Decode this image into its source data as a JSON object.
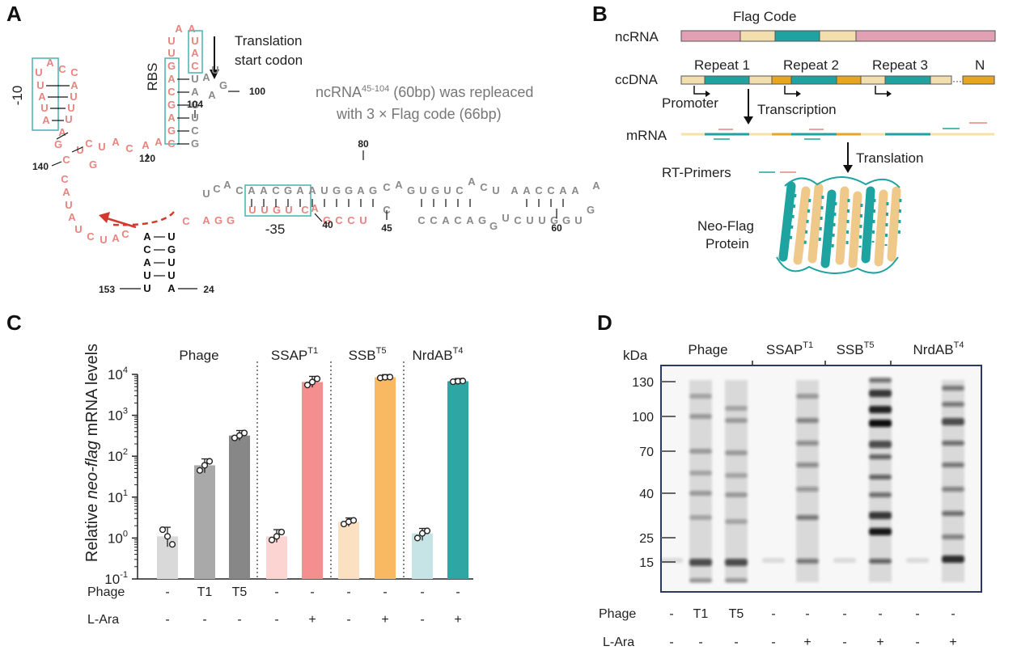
{
  "panels": {
    "A": "A",
    "B": "B",
    "C": "C",
    "D": "D"
  },
  "colors": {
    "pink": "#e8847f",
    "teal": "#1fa3a0",
    "box": "#45b3b0",
    "gray": "#8a8a8a",
    "dark": "#222222",
    "lightpink": "#e2a0b4",
    "cream": "#f3dfae",
    "orange": "#eaa520"
  },
  "panelA": {
    "label_minus10": "-10",
    "label_rbs": "RBS",
    "label_minus35": "-35",
    "start_codon_l1": "Translation",
    "start_codon_l2": "start codon",
    "note_l1_a": "ncRNA",
    "note_l1_sup": "45-104",
    "note_l1_b": " (60bp) was repleaced",
    "note_l2": "with 3 × Flag code (66bp)",
    "numbers": {
      "n100": "100",
      "n104": "104",
      "n120": "120",
      "n140": "140",
      "n80": "80",
      "n40": "40",
      "n45": "45",
      "n60": "60",
      "n153": "153",
      "n24": "24"
    },
    "top_left_col": [
      "U",
      "U",
      "A",
      "U",
      "A"
    ],
    "top_right_col": [
      "C",
      "A",
      "U",
      "U",
      "U"
    ],
    "loop_top": [
      "A",
      "C"
    ],
    "rbs_left": [
      "U",
      "U",
      "G",
      "A",
      "C",
      "G",
      "A"
    ],
    "loop_aa": [
      "A",
      "A"
    ],
    "rbs_right": [
      "U",
      "A",
      "C",
      "U",
      "A",
      "G",
      "U",
      "C",
      "G",
      "U"
    ],
    "hairpin_tail": [
      "A",
      "U",
      "G",
      "A"
    ],
    "top_strand": [
      "U",
      "C",
      "A",
      "C",
      "A",
      "A",
      "C",
      "G",
      "A",
      "A",
      "U",
      "G",
      "G",
      "A",
      "G",
      "C",
      "A",
      "G",
      "U",
      "G",
      "U",
      "C",
      "A",
      "C",
      "U",
      "A",
      "A",
      "C",
      "C",
      "A",
      "A"
    ],
    "bottom_strand": [
      "A",
      "G",
      "G",
      "U",
      "U",
      "G",
      "U",
      "C",
      "A",
      "G",
      "C",
      "C",
      "U",
      "C",
      "C",
      "C",
      "A",
      "C",
      "A",
      "G",
      "G",
      "U",
      "C",
      "U",
      "U",
      "G",
      "G",
      "U",
      "G",
      "A"
    ],
    "tail_seq": [
      "C",
      "A",
      "U",
      "C",
      "G",
      "C",
      "A",
      "A",
      "U",
      "G",
      "A",
      "C",
      "G",
      "C",
      "A",
      "U",
      "A",
      "U",
      "C",
      "U",
      "A",
      "C"
    ],
    "stem_left": [
      "A",
      "C",
      "A",
      "U",
      "U"
    ],
    "stem_right": [
      "U",
      "G",
      "U",
      "U",
      "A"
    ]
  },
  "panelB": {
    "ncRNA": "ncRNA",
    "flag_code": "Flag Code",
    "ccDNA": "ccDNA",
    "repeat1": "Repeat 1",
    "repeat2": "Repeat 2",
    "repeat3": "Repeat 3",
    "n_label": "N",
    "ellipsis": "···",
    "promoter": "Promoter",
    "transcription": "Transcription",
    "mRNA": "mRNA",
    "translation": "Translation",
    "rt_primers": "RT-Primers",
    "protein_l1": "Neo-Flag",
    "protein_l2": "Protein"
  },
  "panelC": {
    "ylabel_a": "Relative ",
    "ylabel_italic": "neo-flag",
    "ylabel_b": " mRNA levels",
    "groups": [
      {
        "name": "Phage",
        "sup": ""
      },
      {
        "name": "SSAP",
        "sup": "T1"
      },
      {
        "name": "SSB",
        "sup": "T5"
      },
      {
        "name": "NrdAB",
        "sup": "T4"
      }
    ],
    "row_phage": "Phage",
    "row_lara": "L-Ara",
    "phage_vals": [
      "-",
      "T1",
      "T5",
      "-",
      "-",
      "-",
      "-",
      "-",
      "-"
    ],
    "lara_vals": [
      "-",
      "-",
      "-",
      "-",
      "+",
      "-",
      "+",
      "-",
      "+"
    ]
  },
  "panelD": {
    "kda": "kDa",
    "markers": [
      "130",
      "100",
      "70",
      "40",
      "25",
      "15"
    ],
    "groups": [
      {
        "name": "Phage",
        "sup": ""
      },
      {
        "name": "SSAP",
        "sup": "T1"
      },
      {
        "name": "SSB",
        "sup": "T5"
      },
      {
        "name": "NrdAB",
        "sup": "T4"
      }
    ],
    "row_phage": "Phage",
    "row_lara": "L-Ara",
    "phage_vals": [
      "-",
      "T1",
      "T5",
      "-",
      "-",
      "-",
      "-",
      "-",
      "-"
    ],
    "lara_vals": [
      "-",
      "-",
      "-",
      "-",
      "+",
      "-",
      "+",
      "-",
      "+"
    ]
  },
  "chart_data": {
    "type": "bar",
    "categories": [
      "Phage -",
      "Phage T1",
      "Phage T5",
      "SSAP - ",
      "SSAP +",
      "SSB -",
      "SSB +",
      "NrdAB -",
      "NrdAB +"
    ],
    "values": [
      1.1,
      60,
      320,
      1.1,
      6500,
      2.5,
      8500,
      1.3,
      6800
    ],
    "points": [
      [
        1.6,
        1.1,
        0.7
      ],
      [
        45,
        60,
        75
      ],
      [
        280,
        320,
        370
      ],
      [
        0.9,
        1.1,
        1.4
      ],
      [
        5500,
        6500,
        7800
      ],
      [
        2.2,
        2.5,
        2.7
      ],
      [
        8200,
        8500,
        8600
      ],
      [
        1.0,
        1.3,
        1.5
      ],
      [
        6600,
        6800,
        6900
      ]
    ],
    "colors": [
      "#d9d9d9",
      "#a9a9a9",
      "#878787",
      "#fcd5d3",
      "#f58e8e",
      "#fbe1c1",
      "#f9b862",
      "#c6e3e6",
      "#2ea6a3"
    ],
    "yscale": "log",
    "ylim": [
      0.1,
      10000
    ],
    "yticks": [
      {
        "v": 0.1,
        "b": "10",
        "e": "-1"
      },
      {
        "v": 1,
        "b": "10",
        "e": "0"
      },
      {
        "v": 10,
        "b": "10",
        "e": "1"
      },
      {
        "v": 100,
        "b": "10",
        "e": "2"
      },
      {
        "v": 1000,
        "b": "10",
        "e": "3"
      },
      {
        "v": 10000,
        "b": "10",
        "e": "4"
      }
    ]
  }
}
